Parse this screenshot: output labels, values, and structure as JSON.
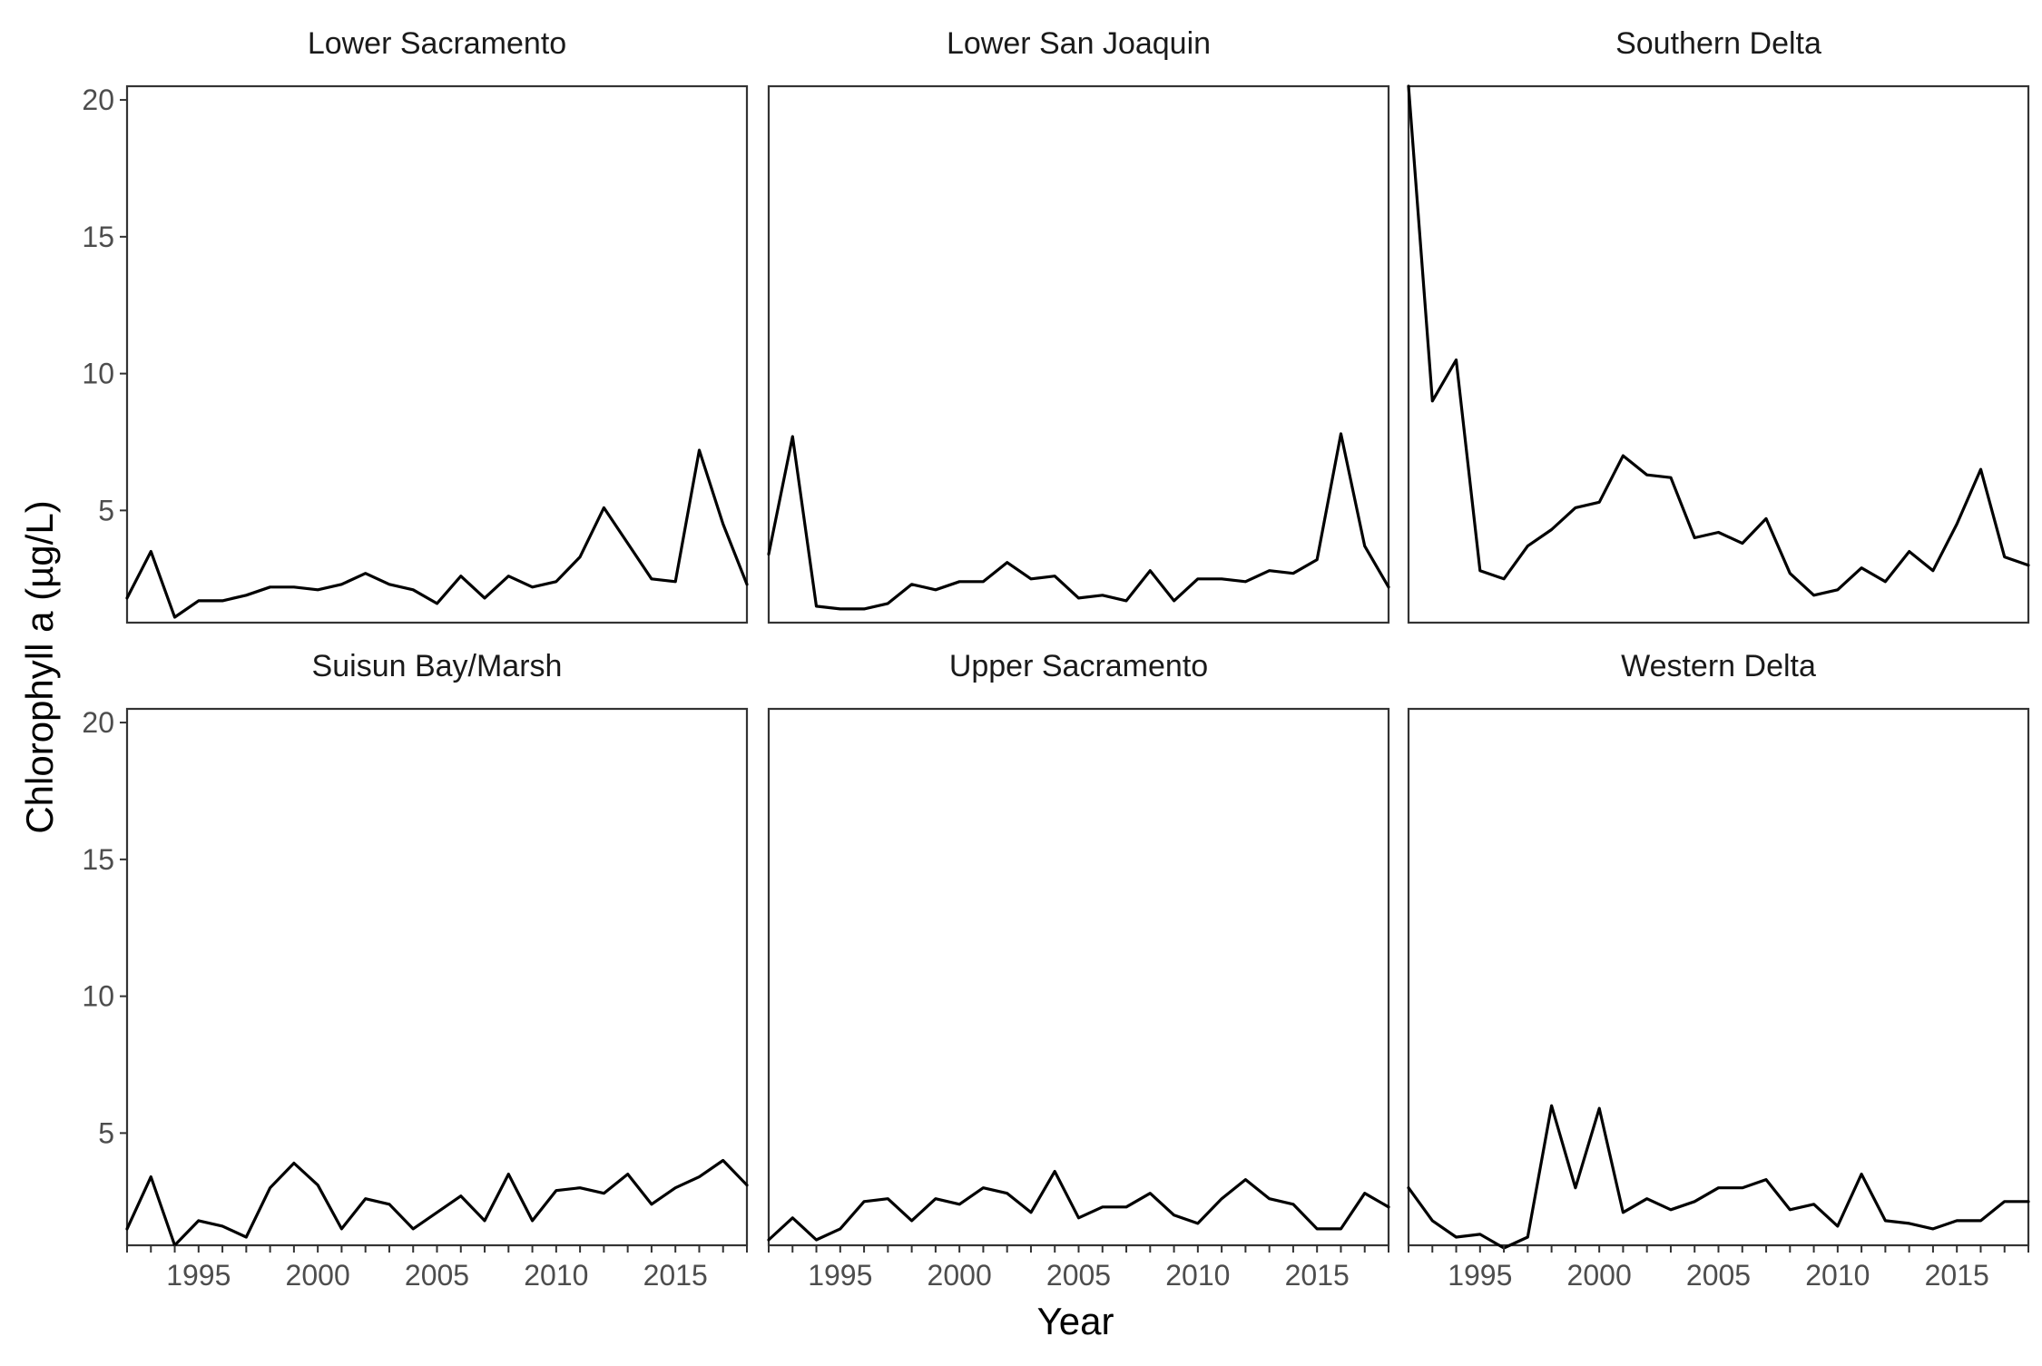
{
  "chart_data": {
    "type": "line",
    "facet_layout": "2 rows x 3 columns, shared axes",
    "xlabel": "Year",
    "ylabel": "Chlorophyll a (µg/L)",
    "xlim": [
      1992,
      2018
    ],
    "ylim": [
      0.9,
      20.5
    ],
    "x_ticks": [
      1995,
      2000,
      2005,
      2010,
      2015
    ],
    "x_minor_ticks_every": 1,
    "y_ticks": [
      5,
      10,
      15,
      20
    ],
    "grid": false,
    "line_color": "#000000",
    "x": [
      1992,
      1993,
      1994,
      1995,
      1996,
      1997,
      1998,
      1999,
      2000,
      2001,
      2002,
      2003,
      2004,
      2005,
      2006,
      2007,
      2008,
      2009,
      2010,
      2011,
      2012,
      2013,
      2014,
      2015,
      2016,
      2017,
      2018
    ],
    "panels": [
      {
        "title": "Lower Sacramento",
        "values": [
          1.8,
          3.5,
          1.1,
          1.7,
          1.7,
          1.9,
          2.2,
          2.2,
          2.1,
          2.3,
          2.7,
          2.3,
          2.1,
          1.6,
          2.6,
          1.8,
          2.6,
          2.2,
          2.4,
          3.3,
          5.1,
          3.8,
          2.5,
          2.4,
          7.2,
          4.5,
          2.3
        ]
      },
      {
        "title": "Lower San Joaquin",
        "values": [
          3.4,
          7.7,
          1.5,
          1.4,
          1.4,
          1.6,
          2.3,
          2.1,
          2.4,
          2.4,
          3.1,
          2.5,
          2.6,
          1.8,
          1.9,
          1.7,
          2.8,
          1.7,
          2.5,
          2.5,
          2.4,
          2.8,
          2.7,
          3.2,
          7.8,
          3.7,
          2.2
        ]
      },
      {
        "title": "Southern Delta",
        "values": [
          20.5,
          9.0,
          10.5,
          2.8,
          2.5,
          3.7,
          4.3,
          5.1,
          5.3,
          7.0,
          6.3,
          6.2,
          4.0,
          4.2,
          3.8,
          4.7,
          2.7,
          1.9,
          2.1,
          2.9,
          2.4,
          3.5,
          2.8,
          4.5,
          6.5,
          3.3,
          3.0
        ]
      },
      {
        "title": "Suisun Bay/Marsh",
        "values": [
          1.5,
          3.4,
          0.9,
          1.8,
          1.6,
          1.2,
          3.0,
          3.9,
          3.1,
          1.5,
          2.6,
          2.4,
          1.5,
          2.1,
          2.7,
          1.8,
          3.5,
          1.8,
          2.9,
          3.0,
          2.8,
          3.5,
          2.4,
          3.0,
          3.4,
          4.0,
          3.1
        ]
      },
      {
        "title": "Upper Sacramento",
        "values": [
          1.1,
          1.9,
          1.1,
          1.5,
          2.5,
          2.6,
          1.8,
          2.6,
          2.4,
          3.0,
          2.8,
          2.1,
          3.6,
          1.9,
          2.3,
          2.3,
          2.8,
          2.0,
          1.7,
          2.6,
          3.3,
          2.6,
          2.4,
          1.5,
          1.5,
          2.8,
          2.3
        ]
      },
      {
        "title": "Western Delta",
        "values": [
          3.0,
          1.8,
          1.2,
          1.3,
          0.8,
          1.2,
          6.0,
          3.0,
          5.9,
          2.1,
          2.6,
          2.2,
          2.5,
          3.0,
          3.0,
          3.3,
          2.2,
          2.4,
          1.6,
          3.5,
          1.8,
          1.7,
          1.5,
          1.8,
          1.8,
          2.5,
          2.5
        ]
      }
    ]
  }
}
